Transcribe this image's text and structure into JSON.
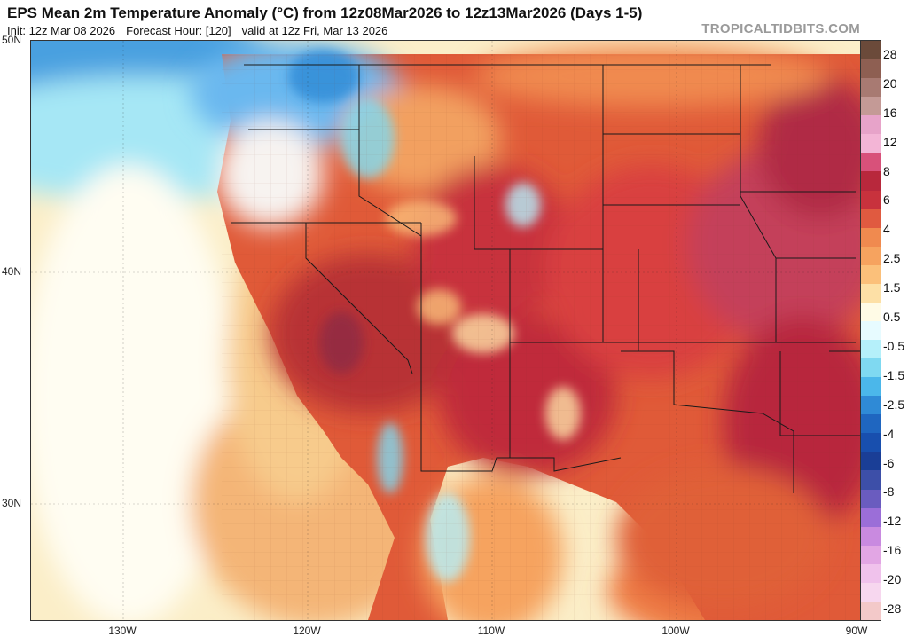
{
  "header": {
    "title": "EPS Mean 2m Temperature Anomaly (°C) from 12z08Mar2026 to 12z13Mar2026 (Days 1-5)",
    "init": "Init: 12z Mar 08 2026",
    "forecast_hour": "Forecast Hour: [120]",
    "valid": "valid at 12z Fri, Mar 13 2026",
    "credit": "TROPICALTIDBITS.COM"
  },
  "axes": {
    "latitude_labels": [
      "50N",
      "40N",
      "30N"
    ],
    "longitude_labels": [
      "130W",
      "120W",
      "110W",
      "100W",
      "90W"
    ]
  },
  "colorbar": {
    "labels": [
      "28",
      "20",
      "16",
      "12",
      "8",
      "6",
      "4",
      "2.5",
      "1.5",
      "0.5",
      "-0.5",
      "-1.5",
      "-2.5",
      "-4",
      "-6",
      "-8",
      "-12",
      "-16",
      "-20",
      "-28"
    ],
    "colors": [
      "#6b4a3a",
      "#8e5f52",
      "#a87a72",
      "#c49a96",
      "#e7a3c9",
      "#f3b5d6",
      "#d8517a",
      "#b8283c",
      "#c8323d",
      "#e05a40",
      "#f08a4f",
      "#f6a35f",
      "#fbc07a",
      "#fde0a6",
      "#fffbe6",
      "#e7fbff",
      "#b5f0fa",
      "#7fd9f1",
      "#4bb7ea",
      "#2f8ad6",
      "#1f66c0",
      "#184fae",
      "#1a3e96",
      "#3d4fa8",
      "#6a5cbf",
      "#9b6ed8",
      "#c98ae0",
      "#e2a6e4",
      "#f0c2ec",
      "#f7d7ef",
      "#f3c9c9"
    ]
  },
  "chart_data": {
    "type": "map",
    "variable": "2m temperature anomaly",
    "units": "°C",
    "model": "EPS Mean",
    "period": "12z08Mar2026 to 12z13Mar2026",
    "extent": {
      "lon_min": -135,
      "lon_max": -90,
      "lat_min": 25,
      "lat_max": 50
    }
  }
}
